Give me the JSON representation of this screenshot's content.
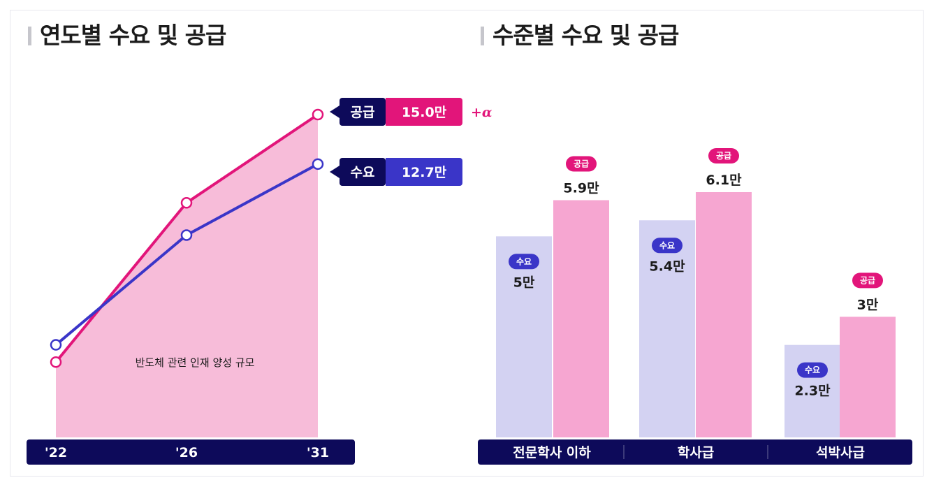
{
  "colors": {
    "supply": "#e2157a",
    "demand": "#3a35c8",
    "navy": "#0d0a5a",
    "area_fill": "#f7bcd9",
    "demand_bar": "#d3d2f2",
    "supply_bar": "#f6a6d1"
  },
  "left_panel": {
    "title": "연도별 수요 및 공급"
  },
  "right_panel": {
    "title": "수준별 수요 및 공급"
  },
  "chart_data": [
    {
      "type": "line",
      "title": "연도별 수요 및 공급",
      "x": [
        "'22",
        "'26",
        "'31"
      ],
      "series": [
        {
          "name": "공급",
          "values": [
            3.5,
            10.9,
            15.0
          ]
        },
        {
          "name": "수요",
          "values": [
            4.3,
            9.4,
            12.7
          ]
        }
      ],
      "ylim": [
        0,
        19
      ],
      "area_label": "반도체 관련 인재 양성 규모",
      "end_labels": {
        "supply": "15.0만",
        "demand": "12.7만",
        "supply_suffix": "+α"
      }
    },
    {
      "type": "bar",
      "title": "수준별 수요 및 공급",
      "categories": [
        "전문학사 이하",
        "학사급",
        "석박사급"
      ],
      "series": [
        {
          "name": "수요",
          "values": [
            5,
            5.4,
            2.3
          ],
          "labels": [
            "5만",
            "5.4만",
            "2.3만"
          ]
        },
        {
          "name": "공급",
          "values": [
            5.9,
            6.1,
            3
          ],
          "labels": [
            "5.9만",
            "6.1만",
            "3만"
          ]
        }
      ],
      "ylim": [
        0,
        7.5
      ]
    }
  ]
}
